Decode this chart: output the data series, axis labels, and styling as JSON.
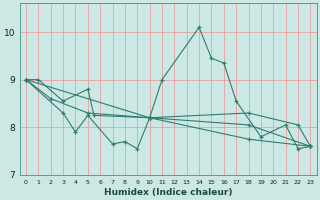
{
  "title": "",
  "xlabel": "Humidex (Indice chaleur)",
  "bg_color": "#cce8e4",
  "grid_color": "#e8a0a0",
  "line_color": "#2e7d6e",
  "xlim": [
    -0.5,
    23.5
  ],
  "ylim": [
    7,
    10.6
  ],
  "yticks": [
    7,
    8,
    9,
    10
  ],
  "xticks": [
    0,
    1,
    2,
    3,
    4,
    5,
    6,
    7,
    8,
    9,
    10,
    11,
    12,
    13,
    14,
    15,
    16,
    17,
    18,
    19,
    20,
    21,
    22,
    23
  ],
  "series": [
    {
      "x": [
        0,
        1,
        3,
        5,
        5.5,
        10,
        11,
        14,
        15,
        16,
        17,
        19,
        21,
        22,
        23
      ],
      "y": [
        9.0,
        9.0,
        8.55,
        8.8,
        8.25,
        8.2,
        9.0,
        10.1,
        9.45,
        9.35,
        8.55,
        7.8,
        8.05,
        7.55,
        7.6
      ]
    },
    {
      "x": [
        0,
        3,
        4,
        5,
        7,
        8,
        9,
        10,
        18,
        22,
        23
      ],
      "y": [
        9.0,
        8.3,
        7.9,
        8.25,
        7.65,
        7.7,
        7.55,
        8.2,
        8.3,
        8.05,
        7.6
      ]
    },
    {
      "x": [
        0,
        2,
        5,
        10,
        18,
        23
      ],
      "y": [
        9.0,
        8.6,
        8.3,
        8.2,
        8.05,
        7.6
      ]
    },
    {
      "x": [
        0,
        10,
        18,
        23
      ],
      "y": [
        9.0,
        8.2,
        7.75,
        7.6
      ]
    }
  ]
}
